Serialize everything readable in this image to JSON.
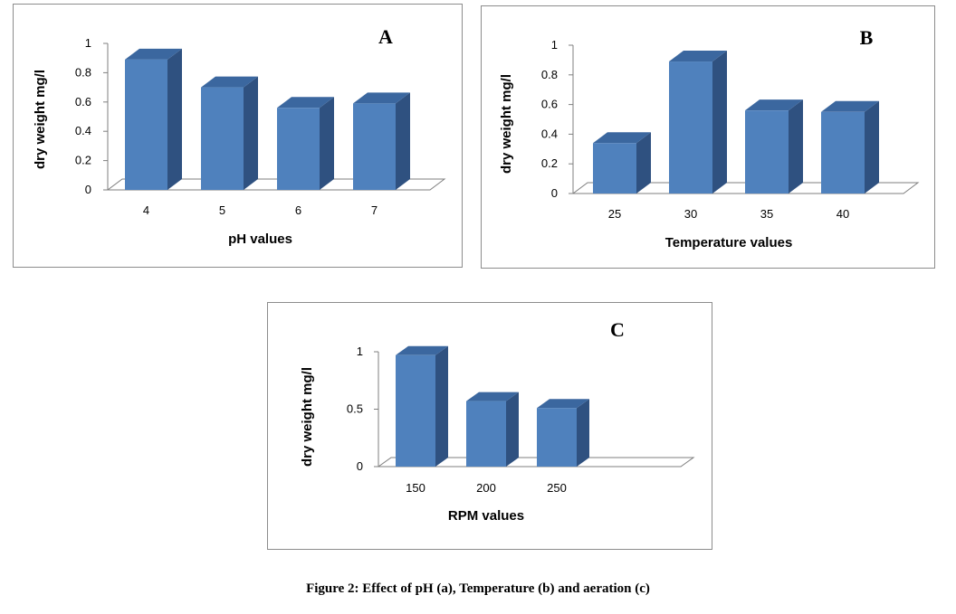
{
  "figure_caption": "Figure 2: Effect of pH (a), Temperature (b) and aeration (c)",
  "colors": {
    "bar_front": "#4f81bd",
    "bar_side": "#2f5180",
    "bar_top": "#3b679f",
    "axis": "#7f7f7f",
    "floor": "#ffffff"
  },
  "chart_data": [
    {
      "type": "bar",
      "panel_letter": "A",
      "categories": [
        "4",
        "5",
        "6",
        "7"
      ],
      "values": [
        0.89,
        0.7,
        0.56,
        0.59
      ],
      "xlabel": "pH values",
      "ylabel": "dry weight mg/l",
      "ylim": [
        0,
        1
      ],
      "yticks": [
        "0",
        "0.2",
        "0.4",
        "0.6",
        "0.8",
        "1"
      ],
      "grid": false,
      "legend": "none",
      "style": "3d-column"
    },
    {
      "type": "bar",
      "panel_letter": "B",
      "categories": [
        "25",
        "30",
        "35",
        "40"
      ],
      "values": [
        0.34,
        0.89,
        0.56,
        0.55
      ],
      "xlabel": "Temperature values",
      "ylabel": "dry weight mg/l",
      "ylim": [
        0,
        1
      ],
      "yticks": [
        "0",
        "0.2",
        "0.4",
        "0.6",
        "0.8",
        "1"
      ],
      "grid": false,
      "legend": "none",
      "style": "3d-column"
    },
    {
      "type": "bar",
      "panel_letter": "C",
      "categories": [
        "150",
        "200",
        "250"
      ],
      "values": [
        0.97,
        0.57,
        0.51
      ],
      "xlabel": "RPM values",
      "ylabel": "dry weight mg/l",
      "ylim": [
        0,
        1
      ],
      "yticks": [
        "0",
        "0.5",
        "1"
      ],
      "grid": false,
      "legend": "none",
      "style": "3d-column"
    }
  ]
}
